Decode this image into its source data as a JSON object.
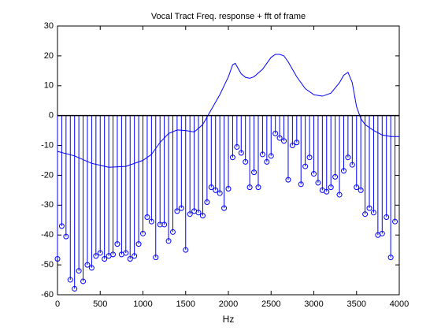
{
  "chart_data": {
    "type": "line+stem",
    "title": "Vocal Tract Freq. response + fft of frame",
    "x_label": "Hz",
    "xlim": [
      0,
      4000
    ],
    "xticks": [
      0,
      500,
      1000,
      1500,
      2000,
      2500,
      3000,
      3500,
      4000
    ],
    "ylim": [
      -60,
      30
    ],
    "yticks": [
      -60,
      -50,
      -40,
      -30,
      -20,
      -10,
      0,
      10,
      20,
      30
    ],
    "series": [
      {
        "type": "line",
        "color": "#0000ff",
        "x": [
          0,
          200,
          400,
          600,
          800,
          1000,
          1100,
          1200,
          1300,
          1400,
          1500,
          1600,
          1700,
          1800,
          1900,
          2000,
          2050,
          2080,
          2150,
          2200,
          2250,
          2300,
          2400,
          2500,
          2550,
          2600,
          2650,
          2700,
          2800,
          2900,
          3000,
          3100,
          3200,
          3300,
          3350,
          3400,
          3450,
          3500,
          3550,
          3600,
          3700,
          3800,
          3900,
          4000
        ],
        "values": [
          -12,
          -13.5,
          -16,
          -17.3,
          -17,
          -15,
          -13,
          -9,
          -6,
          -4.8,
          -5,
          -5.5,
          -3,
          2,
          7,
          13,
          17,
          17.5,
          14,
          12.8,
          12.5,
          13,
          15.5,
          19.5,
          20.5,
          20.5,
          20,
          18,
          13,
          9,
          7,
          6.5,
          7.5,
          11,
          13.5,
          14.5,
          11,
          3,
          -1,
          -3,
          -5,
          -6.5,
          -7,
          -7
        ]
      },
      {
        "type": "stem",
        "color": "#0000ff",
        "x": [
          0,
          50,
          100,
          150,
          200,
          250,
          300,
          350,
          400,
          450,
          500,
          550,
          600,
          650,
          700,
          750,
          800,
          850,
          900,
          950,
          1000,
          1050,
          1100,
          1150,
          1200,
          1250,
          1300,
          1350,
          1400,
          1450,
          1500,
          1550,
          1600,
          1650,
          1700,
          1750,
          1800,
          1850,
          1900,
          1950,
          2000,
          2050,
          2100,
          2150,
          2200,
          2250,
          2300,
          2350,
          2400,
          2450,
          2500,
          2550,
          2600,
          2650,
          2700,
          2750,
          2800,
          2850,
          2900,
          2950,
          3000,
          3050,
          3100,
          3150,
          3200,
          3250,
          3300,
          3350,
          3400,
          3450,
          3500,
          3550,
          3600,
          3650,
          3700,
          3750,
          3800,
          3850,
          3900,
          3950
        ],
        "values": [
          -48,
          -37,
          -40.5,
          -55,
          -58,
          -52,
          -55.5,
          -50,
          -51,
          -47,
          -46,
          -48,
          -47,
          -46.5,
          -43,
          -46.5,
          -46,
          -48,
          -47,
          -43,
          -39.5,
          -34,
          -35.5,
          -47.5,
          -36.5,
          -36.5,
          -42,
          -39,
          -32,
          -31,
          -45,
          -33,
          -32,
          -32.5,
          -33.5,
          -29,
          -24,
          -25,
          -26,
          -31,
          -24.5,
          -14,
          -10.5,
          -12.5,
          -15.5,
          -24,
          -19,
          -24,
          -13,
          -15.5,
          -13.5,
          -6,
          -7.5,
          -8.5,
          -21.5,
          -10,
          -9,
          -23,
          -17,
          -14,
          -19.5,
          -22.5,
          -25,
          -25.5,
          -24,
          -20.5,
          -26.5,
          -18.5,
          -14,
          -16.5,
          -24,
          -25,
          -33,
          -31,
          -32.5,
          -40,
          -39.5,
          -34,
          -47.5,
          -35.5
        ]
      }
    ]
  }
}
